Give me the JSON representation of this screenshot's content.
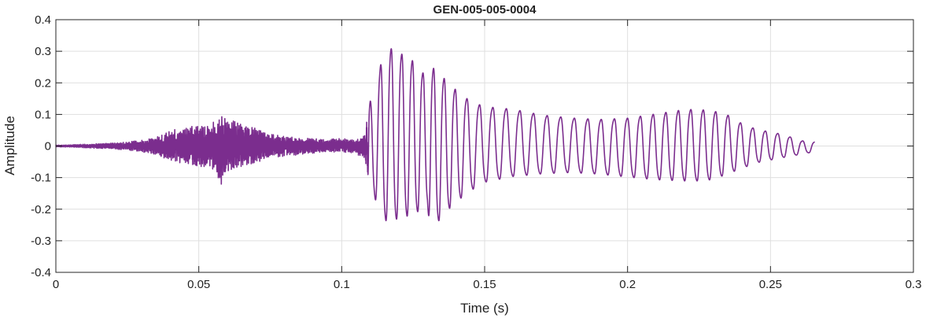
{
  "chart_data": {
    "type": "line",
    "title": "GEN-005-005-0004",
    "xlabel": "Time (s)",
    "ylabel": "Amplitude",
    "xlim": [
      0,
      0.3
    ],
    "ylim": [
      -0.4,
      0.4
    ],
    "x_ticks": [
      0,
      0.05,
      0.1,
      0.15,
      0.2,
      0.25,
      0.3
    ],
    "x_tick_labels": [
      "0",
      "0.05",
      "0.1",
      "0.15",
      "0.2",
      "0.25",
      "0.3"
    ],
    "y_ticks": [
      -0.4,
      -0.3,
      -0.2,
      -0.1,
      0,
      0.1,
      0.2,
      0.3,
      0.4
    ],
    "y_tick_labels": [
      "-0.4",
      "-0.3",
      "-0.2",
      "-0.1",
      "0",
      "0.1",
      "0.2",
      "0.3",
      "0.4"
    ],
    "grid": true,
    "series": [
      {
        "color": "#7b2d8e",
        "x": [
          0,
          0.005,
          0.01,
          0.015,
          0.02,
          0.025,
          0.03,
          0.035,
          0.04,
          0.045,
          0.05,
          0.055,
          0.058,
          0.06,
          0.065,
          0.07,
          0.075,
          0.08,
          0.085,
          0.09,
          0.095,
          0.1,
          0.105,
          0.108,
          0.11,
          0.114,
          0.117,
          0.12,
          0.125,
          0.13,
          0.131,
          0.135,
          0.14,
          0.145,
          0.15,
          0.16,
          0.17,
          0.18,
          0.19,
          0.2,
          0.21,
          0.22,
          0.225,
          0.23,
          0.235,
          0.24,
          0.245,
          0.25,
          0.255,
          0.26,
          0.2655
        ],
        "upper": [
          0.003,
          0.004,
          0.006,
          0.008,
          0.01,
          0.014,
          0.02,
          0.03,
          0.05,
          0.065,
          0.07,
          0.08,
          0.12,
          0.09,
          0.075,
          0.06,
          0.04,
          0.035,
          0.03,
          0.025,
          0.025,
          0.025,
          0.02,
          0.04,
          0.16,
          0.3,
          0.345,
          0.33,
          0.3,
          0.24,
          0.29,
          0.25,
          0.2,
          0.16,
          0.14,
          0.13,
          0.11,
          0.1,
          0.095,
          0.1,
          0.115,
          0.13,
          0.13,
          0.125,
          0.11,
          0.08,
          0.06,
          0.05,
          0.04,
          0.02,
          0.015
        ],
        "lower": [
          -0.003,
          -0.004,
          -0.006,
          -0.008,
          -0.01,
          -0.014,
          -0.02,
          -0.03,
          -0.05,
          -0.06,
          -0.07,
          -0.08,
          -0.135,
          -0.09,
          -0.075,
          -0.06,
          -0.04,
          -0.035,
          -0.03,
          -0.025,
          -0.02,
          -0.02,
          -0.025,
          -0.05,
          -0.14,
          -0.26,
          -0.28,
          -0.26,
          -0.25,
          -0.21,
          -0.315,
          -0.25,
          -0.2,
          -0.16,
          -0.13,
          -0.11,
          -0.1,
          -0.095,
          -0.1,
          -0.11,
          -0.12,
          -0.125,
          -0.125,
          -0.12,
          -0.1,
          -0.08,
          -0.06,
          -0.05,
          -0.04,
          -0.03,
          -0.02
        ],
        "cycles_per_second": [
          2000,
          2000,
          2000,
          2000,
          2000,
          2000,
          2000,
          2000,
          2000,
          2000,
          2000,
          2000,
          2000,
          2000,
          2000,
          2000,
          2000,
          2000,
          2000,
          2000,
          2000,
          2000,
          2000,
          2000,
          270,
          270,
          270,
          270,
          270,
          270,
          270,
          270,
          250,
          230,
          215,
          210,
          210,
          210,
          215,
          220,
          225,
          230,
          230,
          230,
          230,
          230,
          230,
          230,
          230,
          230,
          230
        ],
        "x_end": 0.2655
      }
    ]
  }
}
